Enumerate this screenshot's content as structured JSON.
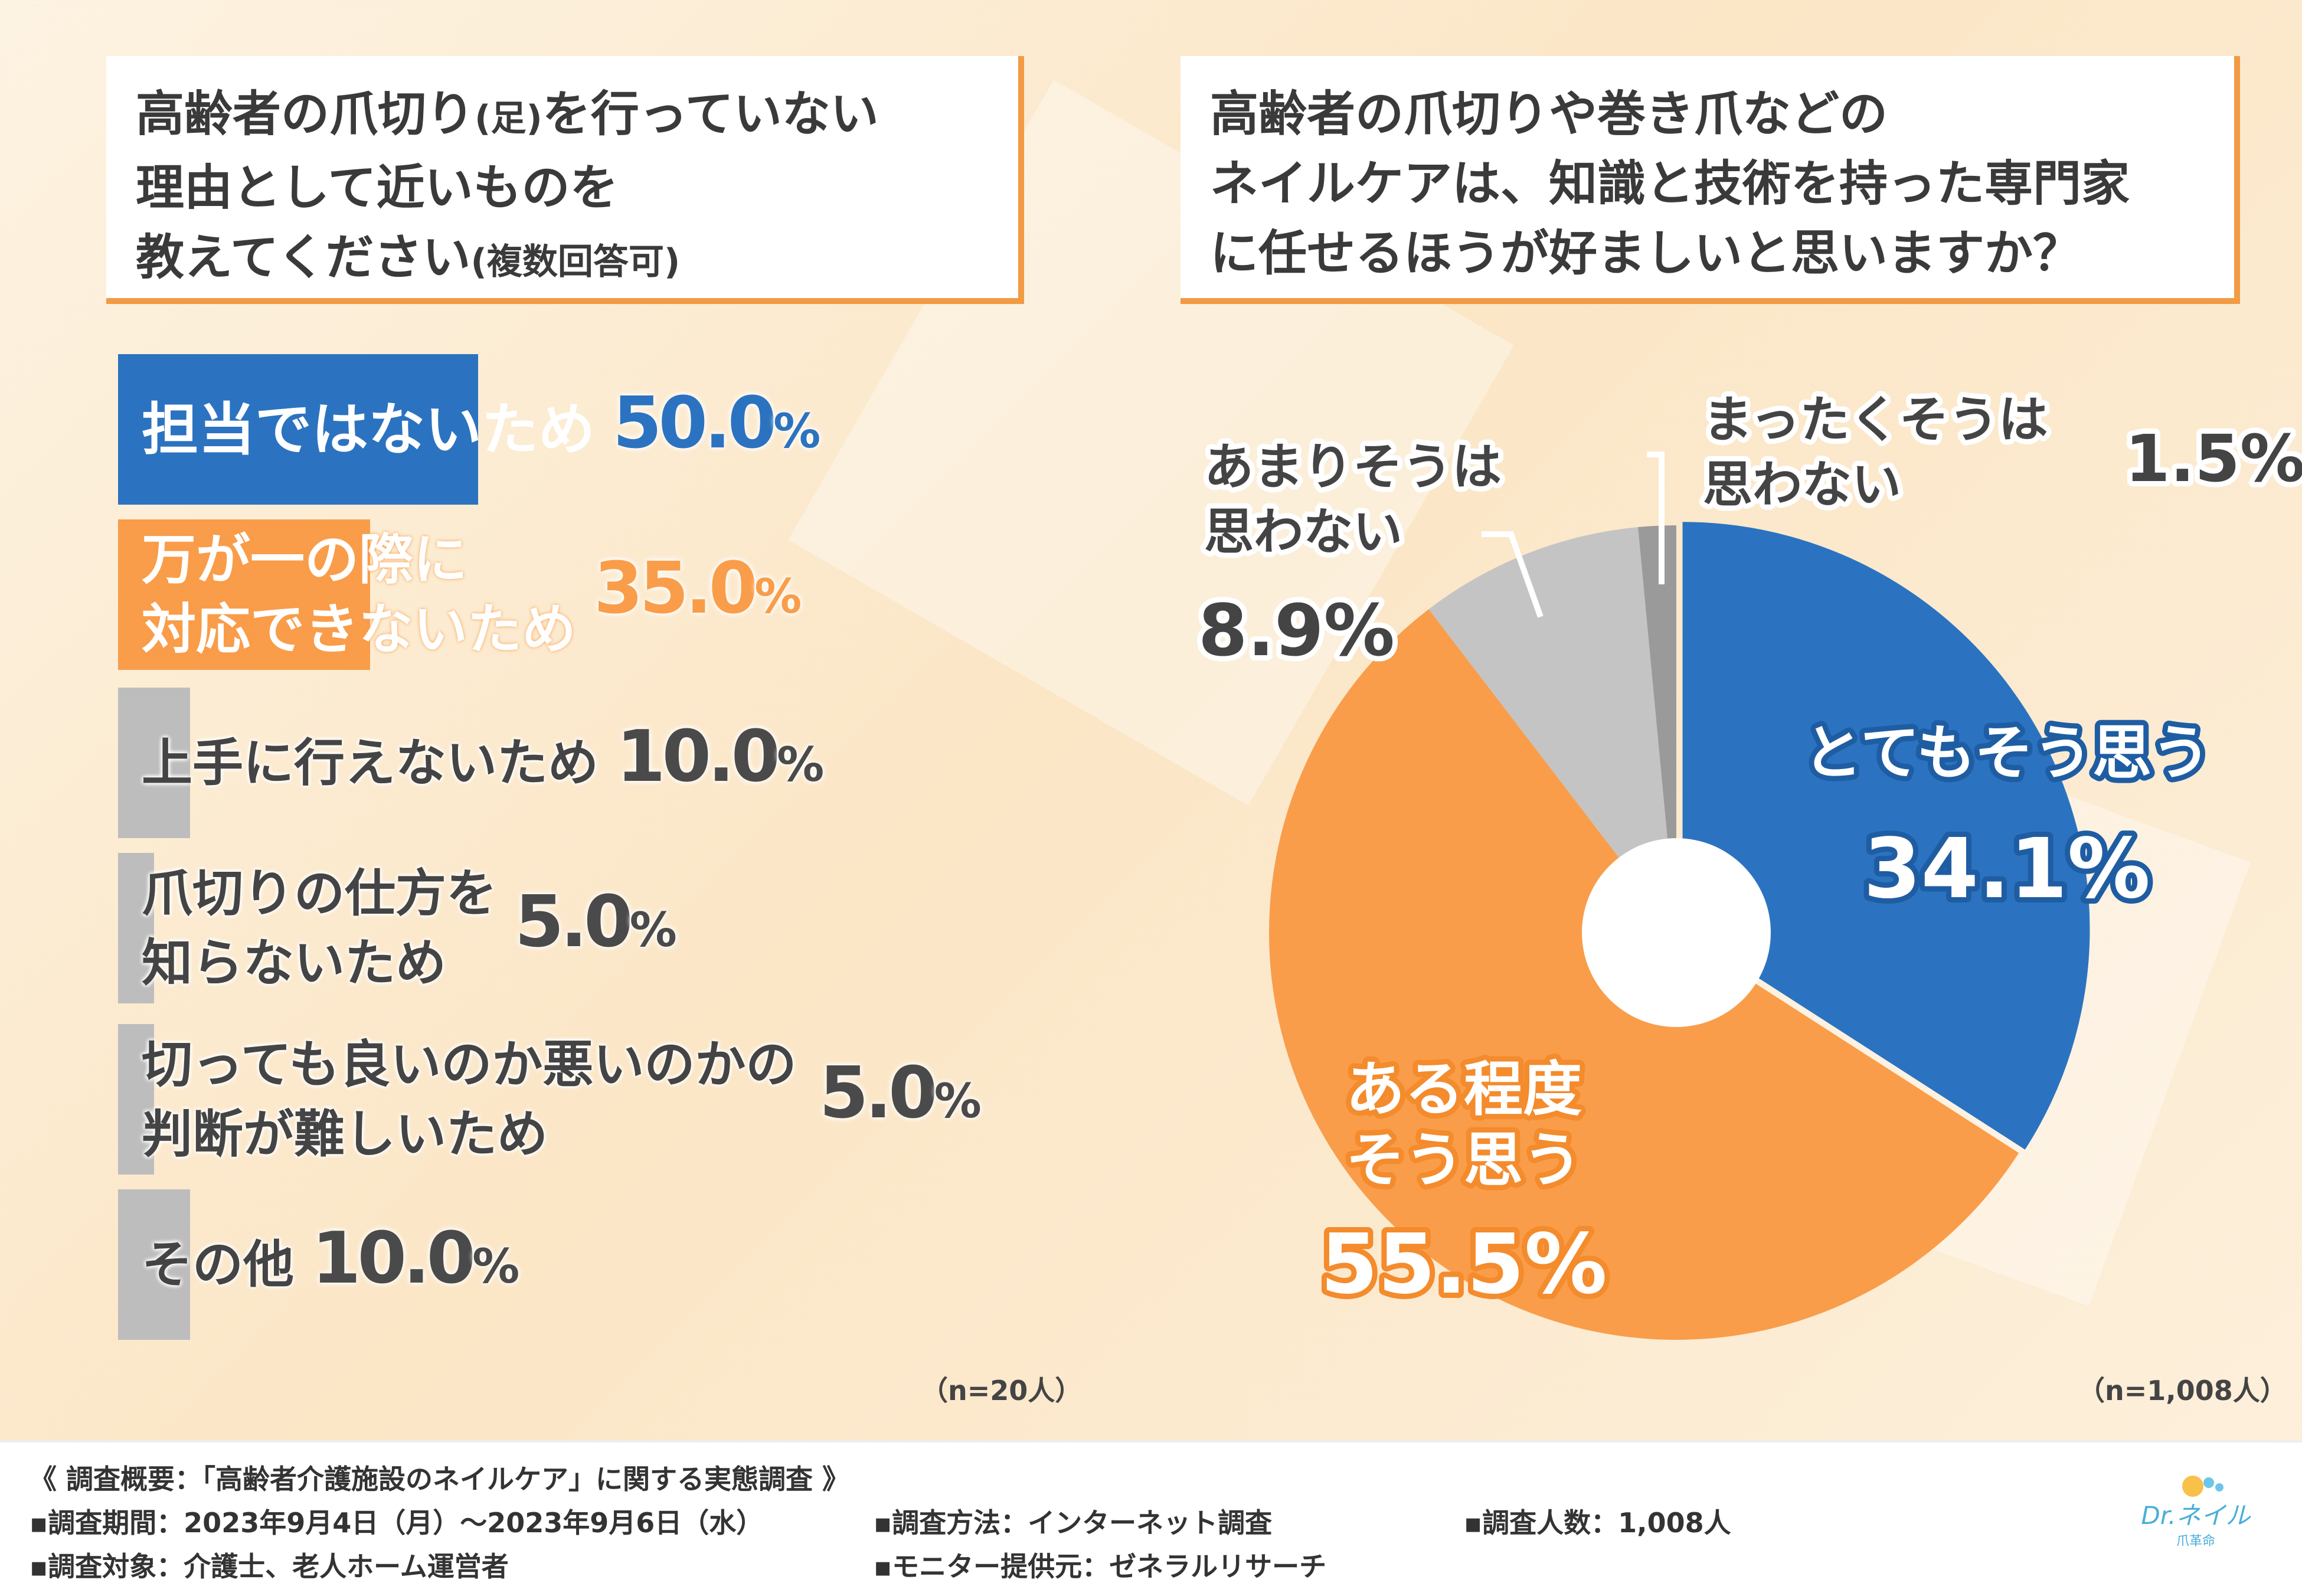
{
  "left_question": {
    "lines": [
      "高齢者の爪切り",
      "(足)",
      "を行っていない",
      "理由として近いものを",
      "教えてください",
      "(複数回答可)"
    ]
  },
  "right_question": {
    "lines": [
      "高齢者の爪切りや巻き爪などの",
      "ネイルケアは、知識と技術を持った専門家",
      "に任せるほうが好ましいと思いますか？"
    ]
  },
  "bar_n": "（n=20人）",
  "pie_n": "（n=1,008人）",
  "chart_data": [
    {
      "type": "bar",
      "orientation": "horizontal",
      "unit": "%",
      "categories": [
        "担当ではないため",
        "万が一の際に対応できないため",
        "上手に行えないため",
        "爪切りの仕方を知らないため",
        "切っても良いのか悪いのかの判断が難しいため",
        "その他"
      ],
      "label_lines": [
        [
          "担当ではないため"
        ],
        [
          "万が一の際に",
          "対応できないため"
        ],
        [
          "上手に行えないため"
        ],
        [
          "爪切りの仕方を",
          "知らないため"
        ],
        [
          "切っても良いのか悪いのかの",
          "判断が難しいため"
        ],
        [
          "その他"
        ]
      ],
      "values": [
        50.0,
        35.0,
        10.0,
        5.0,
        5.0,
        10.0
      ],
      "value_labels": [
        "50.0%",
        "35.0%",
        "10.0%",
        "5.0%",
        "5.0%",
        "10.0%"
      ],
      "colors": [
        "#2b73c0",
        "#f99d4a",
        "#bdbdbd",
        "#bdbdbd",
        "#bdbdbd",
        "#bdbdbd"
      ],
      "xlim": [
        0,
        100
      ]
    },
    {
      "type": "pie",
      "donut": true,
      "categories": [
        "とてもそう思う",
        "ある程度そう思う",
        "あまりそうは思わない",
        "まったくそうは思わない"
      ],
      "values": [
        34.1,
        55.5,
        8.9,
        1.5
      ],
      "value_labels": [
        "34.1%",
        "55.5%",
        "8.9%",
        "1.5%"
      ],
      "label_lines": [
        [
          "とてもそう思う"
        ],
        [
          "ある程度",
          "そう思う"
        ],
        [
          "あまりそうは",
          "思わない"
        ],
        [
          "まったくそうは",
          "思わない"
        ]
      ],
      "colors": [
        "#2b73c0",
        "#f99d4a",
        "#c4c4c4",
        "#9a9a9a"
      ]
    }
  ],
  "footer": {
    "title": "《 調査概要：「高齢者介護施設のネイルケア」に関する実態調査 》",
    "period": "▪調査期間：2023年9月4日（月）～2023年9月6日（水）",
    "method": "▪調査方法：インターネット調査",
    "count": "▪調査人数：1,008人",
    "target": "▪調査対象：介護士、老人ホーム運営者",
    "provider": "▪モニター提供元：ゼネラルリサーチ"
  },
  "logo": {
    "name": "Dr.ネイル",
    "sub": "爪革命"
  }
}
